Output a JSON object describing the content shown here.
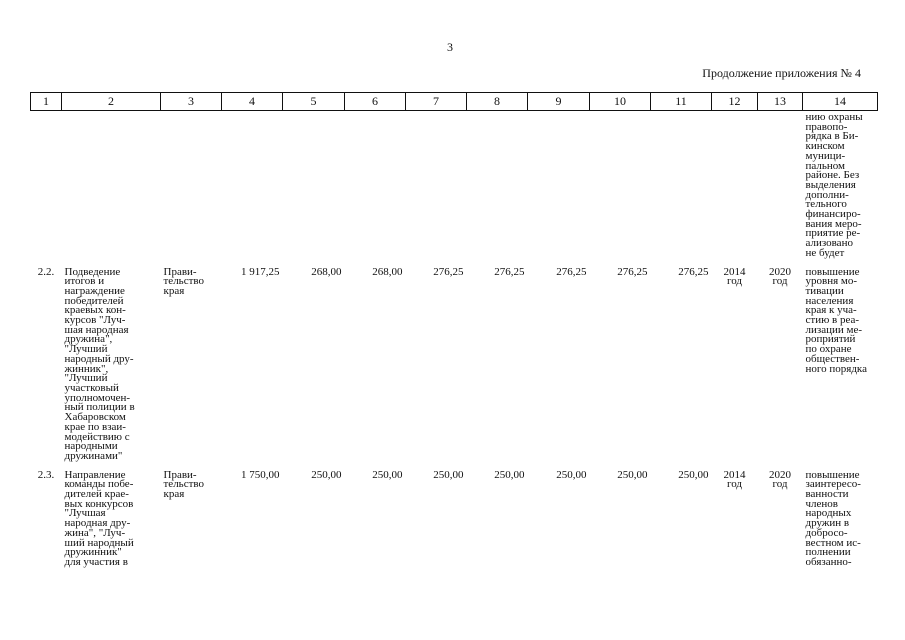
{
  "page": {
    "number": "3",
    "continuation_label": "Продолжение приложения № 4"
  },
  "table": {
    "headers": [
      "1",
      "2",
      "3",
      "4",
      "5",
      "6",
      "7",
      "8",
      "9",
      "10",
      "11",
      "12",
      "13",
      "14"
    ],
    "continuation_row": {
      "col14": "нию охраны\nправопо-\nрядка в Би-\nкинском\nмуници-\nпальном\nрайоне. Без\nвыделения\nдополни-\nтельного\nфинансиро-\nвания меро-\nприятие ре-\nализовано\nне будет"
    },
    "rows": [
      {
        "index": "2.2.",
        "name": "Подведение\nитогов и\nнагражде­ние\nпобедителей\nкраевых кон-\nкурсов \"Луч-\nшая народная\nдружина\",\n\"Лучший\nнародный дру-\nжинник\",\n\"Лучший\nучастковый\nуполномочен-\nный полиции в\nХабаровском\nкрае по взаи-\nмодействию с\nнародными\nдружинами\"",
        "executor": "Прави-\nтельство\nкрая",
        "total": "1 917,25",
        "y1": "268,00",
        "y2": "268,00",
        "y3": "276,25",
        "y4": "276,25",
        "y5": "276,25",
        "y6": "276,25",
        "y7": "276,25",
        "start": "2014\nгод",
        "end": "2020\nгод",
        "result": "повышение\nуровня мо-\nтивации\nнаселения\nкрая к уча-\nстию в реа-\nлизации ме-\nроприятий\nпо охране\nобществен-\nного порядка"
      },
      {
        "index": "2.3.",
        "name": "Направление\nкоманды побе-\nдителей крае-\nвых конкурсов\n\"Лучшая\nнародная дру-\nжина\", \"Луч-\nший народный\nдружинник\"\nдля участия в",
        "executor": "Прави-\nтельство\nкрая",
        "total": "1 750,00",
        "y1": "250,00",
        "y2": "250,00",
        "y3": "250,00",
        "y4": "250,00",
        "y5": "250,00",
        "y6": "250,00",
        "y7": "250,00",
        "start": "2014\nгод",
        "end": "2020\nгод",
        "result": "повышение\nзаинтересо-\nванности\nчленов\nнародных\nдружин в\nдобросо-\nвестном ис-\nполнении\nобязанно-"
      }
    ]
  }
}
